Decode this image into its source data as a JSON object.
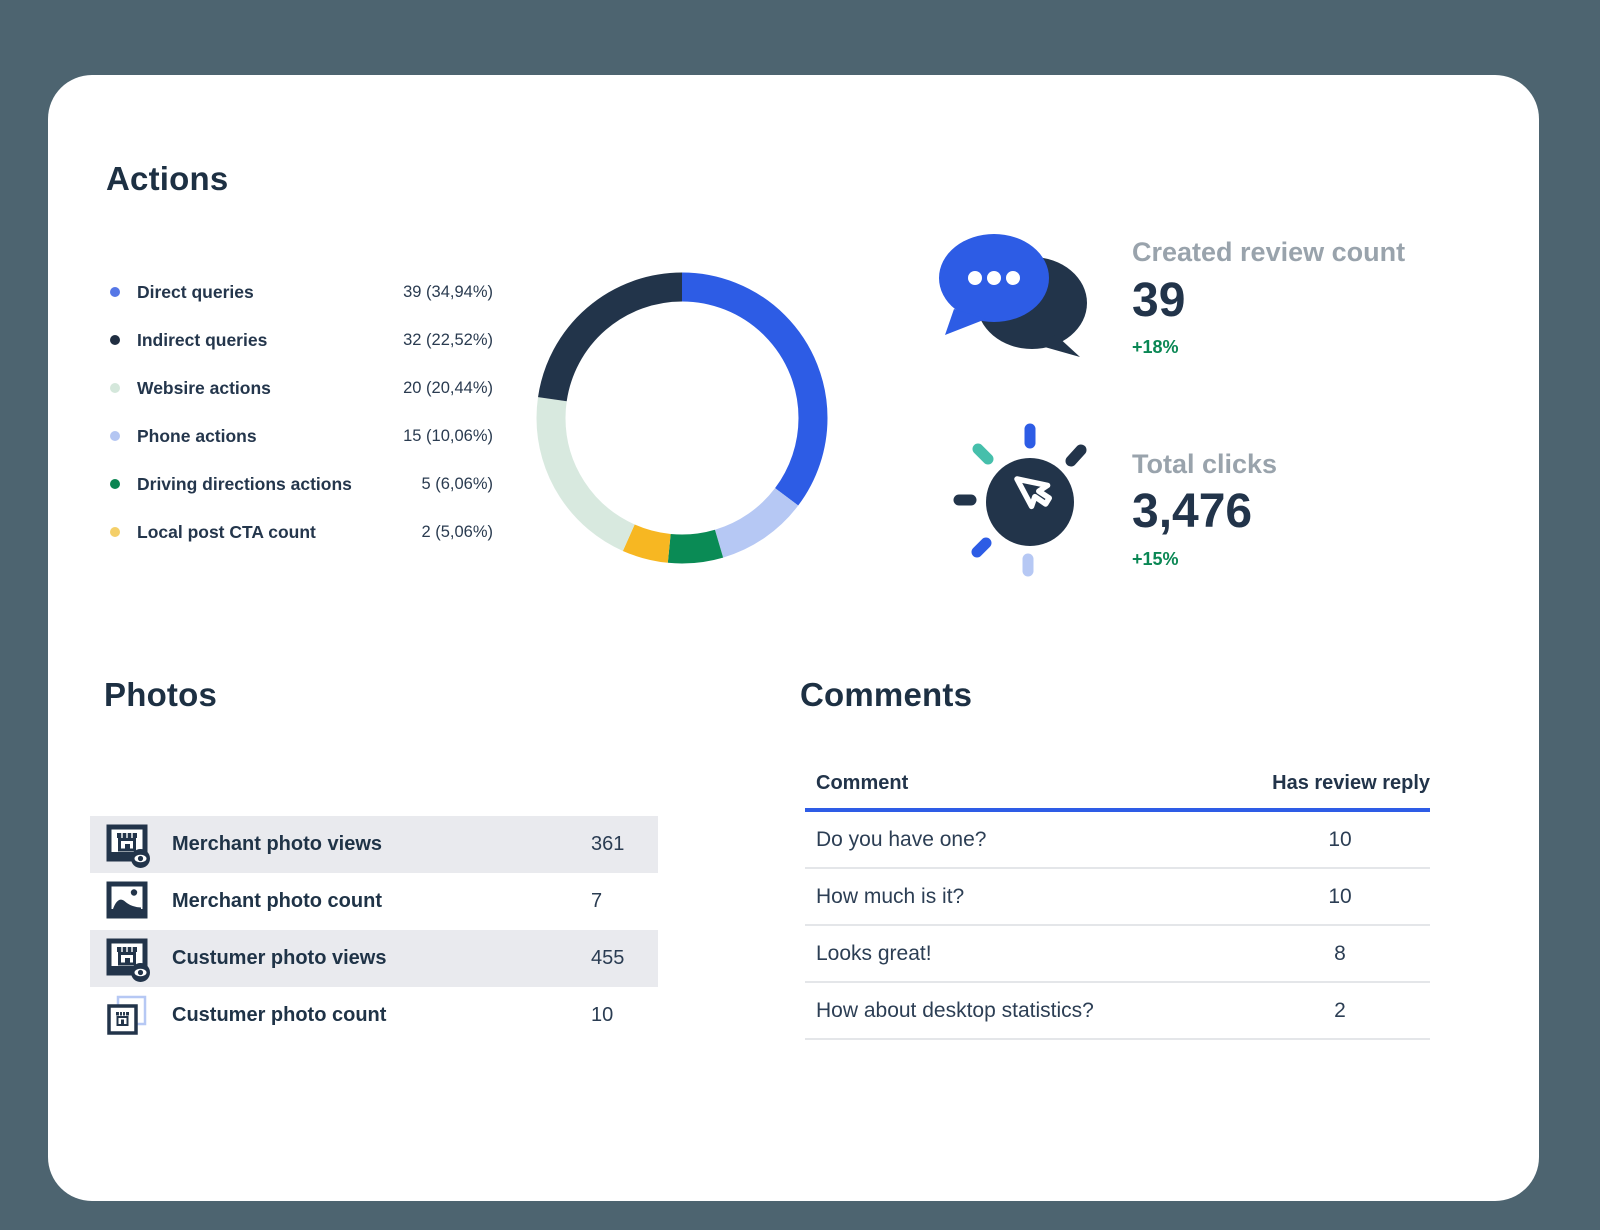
{
  "page": {
    "background": "#4d6470",
    "card_background": "#ffffff"
  },
  "actions": {
    "title": "Actions",
    "legend": [
      {
        "label": "Direct queries",
        "value": "39 (34,94%)",
        "dot_color": "#5677e6"
      },
      {
        "label": "Indirect queries",
        "value": "32 (22,52%)",
        "dot_color": "#202e41"
      },
      {
        "label": "Websire actions",
        "value": "20 (20,44%)",
        "dot_color": "#d4e7db"
      },
      {
        "label": "Phone actions",
        "value": "15 (10,06%)",
        "dot_color": "#b4c6f2"
      },
      {
        "label": "Driving directions actions",
        "value": "5 (6,06%)",
        "dot_color": "#0b8552"
      },
      {
        "label": "Local post CTA count",
        "value": "2 (5,06%)",
        "dot_color": "#f4cf69"
      }
    ]
  },
  "chart_data": {
    "type": "pie",
    "subtype": "donut",
    "title": "Actions",
    "labels": [
      "Direct queries",
      "Indirect queries",
      "Websire actions",
      "Phone actions",
      "Driving directions actions",
      "Local post CTA count"
    ],
    "values": [
      39,
      32,
      20,
      15,
      5,
      2
    ],
    "percentages": [
      34.94,
      22.52,
      20.44,
      10.06,
      6.06,
      5.06
    ],
    "colors": {
      "Direct queries": "#2d5ce5",
      "Indirect queries": "#22344a",
      "Websire actions": "#d8e9df",
      "Phone actions": "#b6c8f4",
      "Driving directions actions": "#0a8b55",
      "Local post CTA count": "#f7b722"
    },
    "clockwise_order_from_top": [
      "Direct queries",
      "Phone actions",
      "Driving directions actions",
      "Local post CTA count",
      "Websire actions",
      "Indirect queries"
    ],
    "legend_position": "left",
    "donut_hole_ratio": 0.8
  },
  "stats": [
    {
      "icon": "chat-bubbles-icon",
      "title": "Created review count",
      "value": "39",
      "change": "+18%",
      "change_color": "#0a8754"
    },
    {
      "icon": "cursor-click-icon",
      "title": "Total clicks",
      "value": "3,476",
      "change": "+15%",
      "change_color": "#0a8754"
    }
  ],
  "photos": {
    "title": "Photos",
    "rows": [
      {
        "icon": "merchant-photo-views-icon",
        "label": "Merchant photo views",
        "value": "361"
      },
      {
        "icon": "merchant-photo-count-icon",
        "label": "Merchant photo count",
        "value": "7"
      },
      {
        "icon": "customer-photo-views-icon",
        "label": "Custumer photo views",
        "value": "455"
      },
      {
        "icon": "customer-photo-count-icon",
        "label": "Custumer photo count",
        "value": "10"
      }
    ]
  },
  "comments": {
    "title": "Comments",
    "columns": [
      "Comment",
      "Has review reply"
    ],
    "rows": [
      {
        "comment": "Do you have one?",
        "replies": "10"
      },
      {
        "comment": "How much is it?",
        "replies": "10"
      },
      {
        "comment": "Looks great!",
        "replies": "8"
      },
      {
        "comment": "How about desktop statistics?",
        "replies": "2"
      }
    ]
  }
}
